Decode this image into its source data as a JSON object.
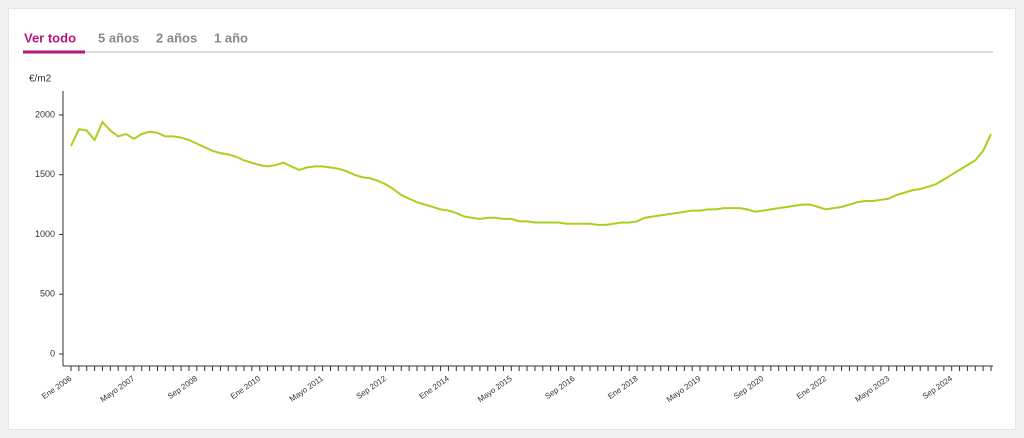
{
  "tabs": [
    "Ver todo",
    "5 años",
    "2 años",
    "1 año"
  ],
  "chart_data": {
    "type": "line",
    "y_label": "€/m2",
    "categories": [
      "Ene 2006",
      null,
      null,
      null,
      null,
      null,
      null,
      null,
      "Mayo 2007",
      null,
      null,
      null,
      null,
      null,
      null,
      null,
      "Sep 2008",
      null,
      null,
      null,
      null,
      null,
      null,
      null,
      "Ene 2010",
      null,
      null,
      null,
      null,
      null,
      null,
      null,
      "Mayo 2011",
      null,
      null,
      null,
      null,
      null,
      null,
      null,
      "Sep 2012",
      null,
      null,
      null,
      null,
      null,
      null,
      null,
      "Ene 2014",
      null,
      null,
      null,
      null,
      null,
      null,
      null,
      "Mayo 2015",
      null,
      null,
      null,
      null,
      null,
      null,
      null,
      "Sep 2016",
      null,
      null,
      null,
      null,
      null,
      null,
      null,
      "Ene 2018",
      null,
      null,
      null,
      null,
      null,
      null,
      null,
      "Mayo 2019",
      null,
      null,
      null,
      null,
      null,
      null,
      null,
      "Sep 2020",
      null,
      null,
      null,
      null,
      null,
      null,
      null,
      "Ene 2022",
      null,
      null,
      null,
      null,
      null,
      null,
      null,
      "Mayo 2023",
      null,
      null,
      null,
      null,
      null,
      null,
      null,
      "Sep 2024",
      null,
      null,
      null,
      null,
      null
    ],
    "series": [
      {
        "color": "#a6d21e",
        "values": [
          1740,
          1880,
          1870,
          1790,
          1940,
          1870,
          1820,
          1840,
          1800,
          1840,
          1860,
          1850,
          1820,
          1820,
          1810,
          1790,
          1760,
          1730,
          1700,
          1680,
          1670,
          1650,
          1620,
          1600,
          1580,
          1570,
          1580,
          1600,
          1570,
          1540,
          1560,
          1570,
          1570,
          1560,
          1550,
          1530,
          1500,
          1480,
          1470,
          1450,
          1420,
          1380,
          1330,
          1300,
          1270,
          1250,
          1230,
          1210,
          1200,
          1180,
          1150,
          1140,
          1130,
          1140,
          1140,
          1130,
          1130,
          1110,
          1110,
          1100,
          1100,
          1100,
          1100,
          1090,
          1090,
          1090,
          1090,
          1080,
          1080,
          1090,
          1100,
          1100,
          1110,
          1140,
          1150,
          1160,
          1170,
          1180,
          1190,
          1200,
          1200,
          1210,
          1210,
          1220,
          1220,
          1220,
          1210,
          1190,
          1200,
          1210,
          1220,
          1230,
          1240,
          1250,
          1250,
          1230,
          1210,
          1220,
          1230,
          1250,
          1270,
          1280,
          1280,
          1290,
          1300,
          1330,
          1350,
          1370,
          1380,
          1400,
          1420,
          1460,
          1500,
          1540,
          1580,
          1620,
          1700,
          1840
        ]
      }
    ],
    "ylim": [
      -100,
      2200
    ],
    "yticks": [
      0,
      500,
      1000,
      1500,
      2000
    ]
  }
}
